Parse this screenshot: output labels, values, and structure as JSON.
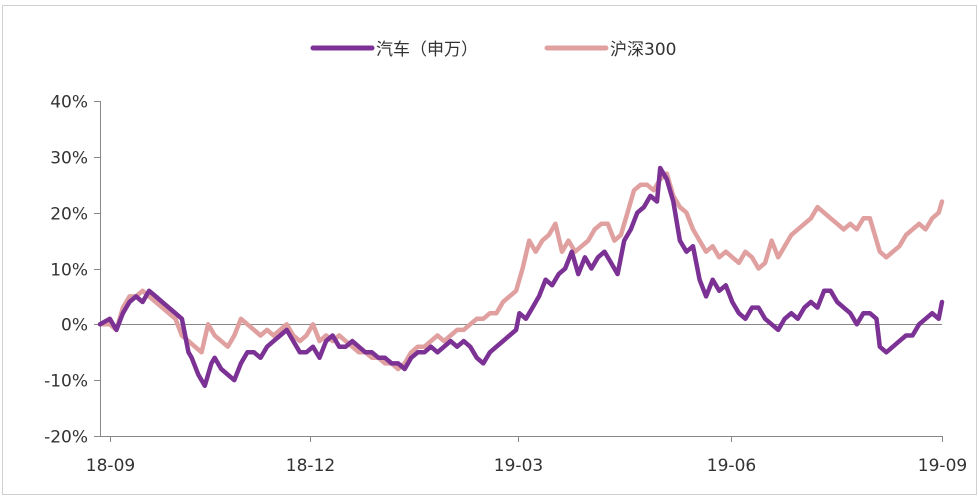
{
  "chart_data": {
    "type": "line",
    "title": "",
    "xlabel": "",
    "ylabel": "",
    "ylim": [
      -20,
      40
    ],
    "yticks": [
      40,
      30,
      20,
      10,
      0,
      -10,
      -20
    ],
    "ytick_labels": [
      "40%",
      "30%",
      "20%",
      "10%",
      "0%",
      "-10%",
      "-20%"
    ],
    "xticks": [
      0,
      62,
      124,
      186,
      248
    ],
    "xtick_labels": [
      "18-09",
      "18-12",
      "19-03",
      "19-06",
      "19-09"
    ],
    "xlim": [
      0,
      248
    ],
    "grid": false,
    "legend_position": "top-center",
    "series": [
      {
        "name": "汽车（申万）",
        "color": "#7b3294",
        "points": [
          [
            0,
            0
          ],
          [
            3,
            1
          ],
          [
            5,
            -1
          ],
          [
            7,
            2
          ],
          [
            9,
            4
          ],
          [
            11,
            5
          ],
          [
            13,
            4
          ],
          [
            15,
            6
          ],
          [
            17,
            5
          ],
          [
            19,
            4
          ],
          [
            21,
            3
          ],
          [
            23,
            2
          ],
          [
            25,
            1
          ],
          [
            27,
            -5
          ],
          [
            28,
            -6
          ],
          [
            30,
            -9
          ],
          [
            32,
            -11
          ],
          [
            34,
            -7
          ],
          [
            35,
            -6
          ],
          [
            37,
            -8
          ],
          [
            39,
            -9
          ],
          [
            41,
            -10
          ],
          [
            43,
            -7
          ],
          [
            45,
            -5
          ],
          [
            47,
            -5
          ],
          [
            49,
            -6
          ],
          [
            51,
            -4
          ],
          [
            53,
            -3
          ],
          [
            55,
            -2
          ],
          [
            57,
            -1
          ],
          [
            59,
            -3
          ],
          [
            61,
            -5
          ],
          [
            63,
            -5
          ],
          [
            65,
            -4
          ],
          [
            67,
            -6
          ],
          [
            69,
            -3
          ],
          [
            71,
            -2
          ],
          [
            73,
            -4
          ],
          [
            75,
            -4
          ],
          [
            77,
            -3
          ],
          [
            79,
            -4
          ],
          [
            81,
            -5
          ],
          [
            83,
            -5
          ],
          [
            85,
            -6
          ],
          [
            87,
            -6
          ],
          [
            89,
            -7
          ],
          [
            91,
            -7
          ],
          [
            93,
            -8
          ],
          [
            95,
            -6
          ],
          [
            97,
            -5
          ],
          [
            99,
            -5
          ],
          [
            101,
            -4
          ],
          [
            103,
            -5
          ],
          [
            105,
            -4
          ],
          [
            107,
            -3
          ],
          [
            109,
            -4
          ],
          [
            111,
            -3
          ],
          [
            113,
            -4
          ],
          [
            115,
            -6
          ],
          [
            117,
            -7
          ],
          [
            119,
            -5
          ],
          [
            121,
            -4
          ],
          [
            123,
            -3
          ],
          [
            125,
            -2
          ],
          [
            127,
            -1
          ],
          [
            128,
            2
          ],
          [
            130,
            1
          ],
          [
            132,
            3
          ],
          [
            134,
            5
          ],
          [
            136,
            8
          ],
          [
            138,
            7
          ],
          [
            140,
            9
          ],
          [
            142,
            10
          ],
          [
            144,
            13
          ],
          [
            146,
            9
          ],
          [
            148,
            12
          ],
          [
            150,
            10
          ],
          [
            152,
            12
          ],
          [
            154,
            13
          ],
          [
            156,
            11
          ],
          [
            158,
            9
          ],
          [
            160,
            15
          ],
          [
            162,
            17
          ],
          [
            164,
            20
          ],
          [
            166,
            21
          ],
          [
            168,
            23
          ],
          [
            170,
            22
          ],
          [
            171,
            28
          ],
          [
            173,
            26
          ],
          [
            175,
            22
          ],
          [
            177,
            15
          ],
          [
            179,
            13
          ],
          [
            181,
            14
          ],
          [
            183,
            8
          ],
          [
            185,
            5
          ],
          [
            187,
            8
          ],
          [
            189,
            6
          ],
          [
            191,
            7
          ],
          [
            193,
            4
          ],
          [
            195,
            2
          ],
          [
            197,
            1
          ],
          [
            199,
            3
          ],
          [
            201,
            3
          ],
          [
            203,
            1
          ],
          [
            205,
            0
          ],
          [
            207,
            -1
          ],
          [
            209,
            1
          ],
          [
            211,
            2
          ],
          [
            213,
            1
          ],
          [
            215,
            3
          ],
          [
            217,
            4
          ],
          [
            219,
            3
          ],
          [
            221,
            6
          ],
          [
            223,
            6
          ],
          [
            225,
            4
          ],
          [
            227,
            3
          ],
          [
            229,
            2
          ],
          [
            231,
            0
          ],
          [
            233,
            2
          ],
          [
            235,
            2
          ],
          [
            237,
            1
          ],
          [
            238,
            -4
          ],
          [
            240,
            -5
          ],
          [
            242,
            -4
          ],
          [
            244,
            -3
          ],
          [
            246,
            -2
          ],
          [
            248,
            -2
          ],
          [
            250,
            0
          ],
          [
            252,
            1
          ],
          [
            254,
            2
          ],
          [
            256,
            1
          ],
          [
            257,
            4
          ]
        ]
      },
      {
        "name": "沪深300",
        "color": "#e0a0a0",
        "points": [
          [
            0,
            0
          ],
          [
            3,
            0
          ],
          [
            5,
            -1
          ],
          [
            7,
            3
          ],
          [
            9,
            5
          ],
          [
            11,
            5
          ],
          [
            13,
            6
          ],
          [
            15,
            5
          ],
          [
            17,
            4
          ],
          [
            19,
            3
          ],
          [
            21,
            2
          ],
          [
            23,
            1
          ],
          [
            25,
            -2
          ],
          [
            27,
            -3
          ],
          [
            29,
            -4
          ],
          [
            31,
            -5
          ],
          [
            33,
            0
          ],
          [
            35,
            -2
          ],
          [
            37,
            -3
          ],
          [
            39,
            -4
          ],
          [
            41,
            -2
          ],
          [
            43,
            1
          ],
          [
            45,
            0
          ],
          [
            47,
            -1
          ],
          [
            49,
            -2
          ],
          [
            51,
            -1
          ],
          [
            53,
            -2
          ],
          [
            55,
            -1
          ],
          [
            57,
            0
          ],
          [
            59,
            -2
          ],
          [
            61,
            -3
          ],
          [
            63,
            -2
          ],
          [
            65,
            0
          ],
          [
            67,
            -3
          ],
          [
            69,
            -2
          ],
          [
            71,
            -3
          ],
          [
            73,
            -2
          ],
          [
            75,
            -3
          ],
          [
            77,
            -4
          ],
          [
            79,
            -5
          ],
          [
            81,
            -5
          ],
          [
            83,
            -6
          ],
          [
            85,
            -6
          ],
          [
            87,
            -7
          ],
          [
            89,
            -7
          ],
          [
            91,
            -8
          ],
          [
            93,
            -7
          ],
          [
            95,
            -5
          ],
          [
            97,
            -4
          ],
          [
            99,
            -4
          ],
          [
            101,
            -3
          ],
          [
            103,
            -2
          ],
          [
            105,
            -3
          ],
          [
            107,
            -2
          ],
          [
            109,
            -1
          ],
          [
            111,
            -1
          ],
          [
            113,
            0
          ],
          [
            115,
            1
          ],
          [
            117,
            1
          ],
          [
            119,
            2
          ],
          [
            121,
            2
          ],
          [
            123,
            4
          ],
          [
            125,
            5
          ],
          [
            127,
            6
          ],
          [
            129,
            10
          ],
          [
            131,
            15
          ],
          [
            133,
            13
          ],
          [
            135,
            15
          ],
          [
            137,
            16
          ],
          [
            139,
            18
          ],
          [
            141,
            13
          ],
          [
            143,
            15
          ],
          [
            145,
            13
          ],
          [
            147,
            14
          ],
          [
            149,
            15
          ],
          [
            151,
            17
          ],
          [
            153,
            18
          ],
          [
            155,
            18
          ],
          [
            157,
            15
          ],
          [
            159,
            16
          ],
          [
            161,
            20
          ],
          [
            163,
            24
          ],
          [
            165,
            25
          ],
          [
            167,
            25
          ],
          [
            169,
            24
          ],
          [
            171,
            26
          ],
          [
            173,
            27
          ],
          [
            175,
            23
          ],
          [
            177,
            21
          ],
          [
            179,
            20
          ],
          [
            181,
            17
          ],
          [
            183,
            15
          ],
          [
            185,
            13
          ],
          [
            187,
            14
          ],
          [
            189,
            12
          ],
          [
            191,
            13
          ],
          [
            193,
            12
          ],
          [
            195,
            11
          ],
          [
            197,
            13
          ],
          [
            199,
            12
          ],
          [
            201,
            10
          ],
          [
            203,
            11
          ],
          [
            205,
            15
          ],
          [
            207,
            12
          ],
          [
            209,
            14
          ],
          [
            211,
            16
          ],
          [
            213,
            17
          ],
          [
            215,
            18
          ],
          [
            217,
            19
          ],
          [
            219,
            21
          ],
          [
            221,
            20
          ],
          [
            223,
            19
          ],
          [
            225,
            18
          ],
          [
            227,
            17
          ],
          [
            229,
            18
          ],
          [
            231,
            17
          ],
          [
            233,
            19
          ],
          [
            235,
            19
          ],
          [
            237,
            15
          ],
          [
            238,
            13
          ],
          [
            240,
            12
          ],
          [
            242,
            13
          ],
          [
            244,
            14
          ],
          [
            246,
            16
          ],
          [
            248,
            17
          ],
          [
            250,
            18
          ],
          [
            252,
            17
          ],
          [
            254,
            19
          ],
          [
            256,
            20
          ],
          [
            257,
            22
          ]
        ]
      }
    ]
  }
}
